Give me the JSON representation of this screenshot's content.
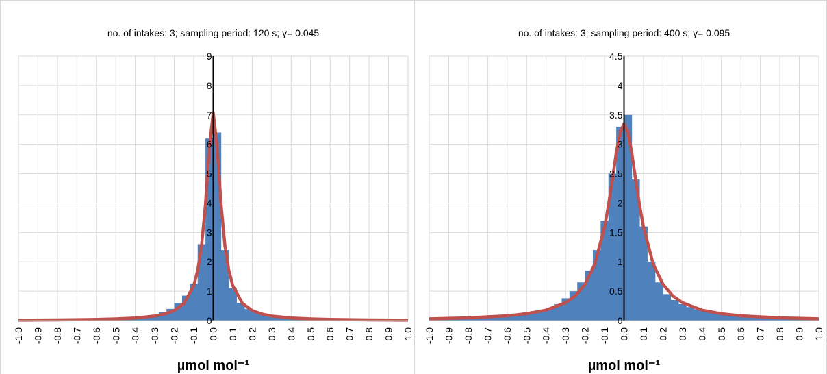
{
  "chart_data": [
    {
      "type": "histogram",
      "title": "no. of intakes: 3; sampling period: 120 s; γ= 0.045",
      "x_label": "µmol mol⁻¹",
      "bins": [
        -1,
        -0.96,
        -0.92,
        -0.88,
        -0.84,
        -0.8,
        -0.76,
        -0.72,
        -0.68,
        -0.64,
        -0.6,
        -0.56,
        -0.52,
        -0.48,
        -0.44,
        -0.4,
        -0.36,
        -0.32,
        -0.28,
        -0.24,
        -0.2,
        -0.16,
        -0.12,
        -0.08,
        -0.04,
        0,
        0.04,
        0.08,
        0.12,
        0.16,
        0.2,
        0.24,
        0.28,
        0.32,
        0.36,
        0.4,
        0.44,
        0.48,
        0.52,
        0.56,
        0.6,
        0.64,
        0.68,
        0.72,
        0.76,
        0.8,
        0.84,
        0.88,
        0.92,
        0.96,
        1
      ],
      "values": [
        0.01,
        0.01,
        0.015,
        0.015,
        0.02,
        0.02,
        0.02,
        0.025,
        0.03,
        0.03,
        0.035,
        0.04,
        0.05,
        0.06,
        0.08,
        0.11,
        0.14,
        0.2,
        0.28,
        0.4,
        0.6,
        0.85,
        1.25,
        2.6,
        6.2,
        6.4,
        2.4,
        1.1,
        0.6,
        0.4,
        0.3,
        0.22,
        0.15,
        0.11,
        0.08,
        0.07,
        0.05,
        0.04,
        0.035,
        0.03,
        0.03,
        0.025,
        0.02,
        0.02,
        0.02,
        0.015,
        0.015,
        0.01,
        0.01,
        0.01
      ],
      "color": "#4f81bd",
      "fit": {
        "color": "#c0504d",
        "x": [
          -1,
          -0.8,
          -0.6,
          -0.5,
          -0.4,
          -0.3,
          -0.25,
          -0.2,
          -0.15,
          -0.1,
          -0.08,
          -0.06,
          -0.04,
          -0.02,
          0,
          0.02,
          0.04,
          0.06,
          0.08,
          0.1,
          0.15,
          0.2,
          0.25,
          0.3,
          0.4,
          0.5,
          0.6,
          0.8,
          1
        ],
        "values": [
          0.014,
          0.022,
          0.04,
          0.057,
          0.088,
          0.156,
          0.222,
          0.341,
          0.584,
          1.19,
          1.7,
          2.54,
          3.95,
          5.9,
          7.07,
          5.9,
          3.95,
          2.54,
          1.7,
          1.19,
          0.584,
          0.341,
          0.222,
          0.156,
          0.088,
          0.057,
          0.04,
          0.022,
          0.014
        ]
      },
      "zero_line": true,
      "xlim": [
        -1,
        1
      ],
      "xticks": [
        {
          "value": -1,
          "label": "-1.0"
        },
        -0.9,
        -0.8,
        -0.7,
        -0.6,
        -0.5,
        -0.4,
        -0.3,
        -0.2,
        -0.1,
        {
          "value": 0,
          "label": "0.0"
        },
        0.1,
        0.2,
        0.3,
        0.4,
        0.5,
        0.6,
        0.7,
        0.8,
        0.9,
        {
          "value": 1,
          "label": "1.0"
        }
      ],
      "ylim": [
        0,
        9
      ],
      "yticks": [
        0,
        1,
        2,
        3,
        4,
        5,
        6,
        7,
        8,
        9
      ],
      "grid": true
    },
    {
      "type": "histogram",
      "title": "no. of intakes: 3; sampling period: 400 s; γ= 0.095",
      "x_label": "µmol mol⁻¹",
      "bins": [
        -1,
        -0.96,
        -0.92,
        -0.88,
        -0.84,
        -0.8,
        -0.76,
        -0.72,
        -0.68,
        -0.64,
        -0.6,
        -0.56,
        -0.52,
        -0.48,
        -0.44,
        -0.4,
        -0.36,
        -0.32,
        -0.28,
        -0.24,
        -0.2,
        -0.16,
        -0.12,
        -0.08,
        -0.04,
        0,
        0.04,
        0.08,
        0.12,
        0.16,
        0.2,
        0.24,
        0.28,
        0.32,
        0.36,
        0.4,
        0.44,
        0.48,
        0.52,
        0.56,
        0.6,
        0.64,
        0.68,
        0.72,
        0.76,
        0.8,
        0.84,
        0.88,
        0.92,
        0.96,
        1
      ],
      "values": [
        0.03,
        0.035,
        0.04,
        0.045,
        0.05,
        0.055,
        0.06,
        0.07,
        0.08,
        0.09,
        0.1,
        0.12,
        0.14,
        0.16,
        0.18,
        0.22,
        0.28,
        0.38,
        0.5,
        0.65,
        0.85,
        1.2,
        1.7,
        2.5,
        3.3,
        3.5,
        2.4,
        1.6,
        1.0,
        0.65,
        0.45,
        0.35,
        0.28,
        0.23,
        0.19,
        0.16,
        0.14,
        0.12,
        0.1,
        0.09,
        0.08,
        0.07,
        0.06,
        0.05,
        0.045,
        0.04,
        0.035,
        0.03,
        0.03,
        0.025
      ],
      "color": "#4f81bd",
      "fit": {
        "color": "#c0504d",
        "x": [
          -1,
          -0.8,
          -0.6,
          -0.5,
          -0.4,
          -0.3,
          -0.25,
          -0.2,
          -0.15,
          -0.1,
          -0.08,
          -0.06,
          -0.04,
          -0.02,
          0,
          0.02,
          0.04,
          0.06,
          0.08,
          0.1,
          0.15,
          0.2,
          0.25,
          0.3,
          0.4,
          0.5,
          0.6,
          0.8,
          1
        ],
        "values": [
          0.03,
          0.047,
          0.082,
          0.117,
          0.179,
          0.305,
          0.422,
          0.617,
          0.96,
          1.59,
          1.96,
          2.39,
          2.85,
          3.21,
          3.35,
          3.21,
          2.85,
          2.39,
          1.96,
          1.59,
          0.96,
          0.617,
          0.422,
          0.305,
          0.179,
          0.117,
          0.082,
          0.047,
          0.03
        ]
      },
      "zero_line": true,
      "xlim": [
        -1,
        1
      ],
      "xticks": [
        {
          "value": -1,
          "label": "-1.0"
        },
        -0.9,
        -0.8,
        -0.7,
        -0.6,
        -0.5,
        -0.4,
        -0.3,
        -0.2,
        -0.1,
        {
          "value": 0,
          "label": "0.0"
        },
        0.1,
        0.2,
        0.3,
        0.4,
        0.5,
        0.6,
        0.7,
        0.8,
        0.9,
        {
          "value": 1,
          "label": "1.0"
        }
      ],
      "ylim": [
        0,
        4.5
      ],
      "yticks": [
        0,
        0.5,
        1,
        1.5,
        2,
        2.5,
        3,
        3.5,
        4,
        4.5
      ],
      "grid": true
    }
  ]
}
